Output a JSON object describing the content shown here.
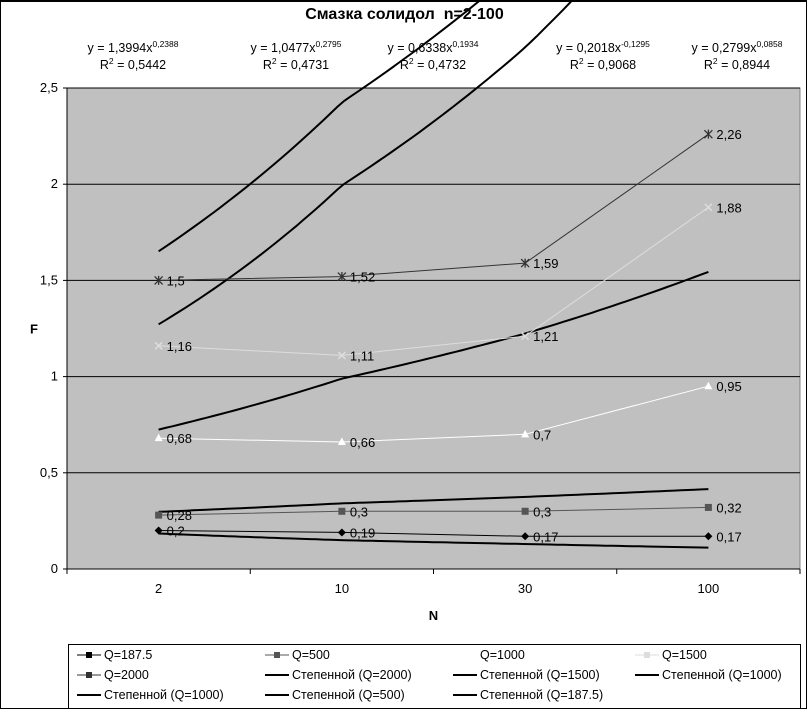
{
  "chart_data": {
    "type": "line",
    "title": "Смазка солидол  n=2-100",
    "xlabel": "N",
    "ylabel": "F",
    "x_categories": [
      "2",
      "10",
      "30",
      "100"
    ],
    "y_ticks": [
      "0",
      "0,5",
      "1",
      "1,5",
      "2",
      "2,5"
    ],
    "ylim": [
      0,
      2.5
    ],
    "grid": true,
    "plot_background": "#c0c0c0",
    "series": [
      {
        "name": "Q=187.5",
        "marker": "diamond",
        "color": "#000000",
        "values": [
          0.2,
          0.19,
          0.17,
          0.17
        ],
        "labels": [
          "0,2",
          "0,19",
          "0,17",
          "0,17"
        ]
      },
      {
        "name": "Q=500",
        "marker": "square",
        "color": "#555555",
        "values": [
          0.28,
          0.3,
          0.3,
          0.32
        ],
        "labels": [
          "0,28",
          "0,3",
          "0,3",
          "0,32"
        ]
      },
      {
        "name": "Q=1000",
        "marker": "triangle",
        "color": "#ffffff",
        "values": [
          0.68,
          0.66,
          0.7,
          0.95
        ],
        "labels": [
          "0,68",
          "0,66",
          "0,7",
          "0,95"
        ]
      },
      {
        "name": "Q=1500",
        "marker": "x",
        "color": "#dddddd",
        "values": [
          1.16,
          1.11,
          1.21,
          1.88
        ],
        "labels": [
          "1,16",
          "1,11",
          "1,21",
          "1,88"
        ]
      },
      {
        "name": "Q=2000",
        "marker": "star",
        "color": "#333333",
        "values": [
          1.5,
          1.52,
          1.59,
          2.26
        ],
        "labels": [
          "1,5",
          "1,52",
          "1,59",
          "2,26"
        ]
      }
    ],
    "trendlines": [
      {
        "name": "Степенной (Q=2000)",
        "a": 1.3994,
        "b": 0.2388
      },
      {
        "name": "Степенной (Q=1500)",
        "a": 1.0477,
        "b": 0.2795
      },
      {
        "name": "Степенной (Q=1000)",
        "a": 0.6338,
        "b": 0.1934
      },
      {
        "name": "Степенной (Q=500)",
        "a": 0.2799,
        "b": 0.0858
      },
      {
        "name": "Степенной (Q=187.5)",
        "a": 0.2018,
        "b": -0.1295
      }
    ],
    "equations": [
      {
        "coef": "y = 1,3994x",
        "exp": "0,2388",
        "r2_label": "R",
        "r2_exp": "2",
        "r2_value": " = 0,5442"
      },
      {
        "coef": "y = 1,0477x",
        "exp": "0,2795",
        "r2_label": "R",
        "r2_exp": "2",
        "r2_value": " = 0,4731"
      },
      {
        "coef": "y = 0,6338x",
        "exp": "0,1934",
        "r2_label": "R",
        "r2_exp": "2",
        "r2_value": " = 0,4732"
      },
      {
        "coef": "y = 0,2018x",
        "exp": "-0,1295",
        "r2_label": "R",
        "r2_exp": "2",
        "r2_value": " = 0,9068"
      },
      {
        "coef": "y = 0,2799x",
        "exp": "0,0858",
        "r2_label": "R",
        "r2_exp": "2",
        "r2_value": " = 0,8944"
      }
    ],
    "legend_position": "bottom",
    "legend_entries": [
      "Q=187.5",
      "Q=500",
      "Q=1000",
      "Q=1500",
      "Q=2000",
      "Степенной (Q=2000)",
      "Степенной (Q=1500)",
      "Степенной (Q=1000)",
      "Степенной (Q=1000)",
      "Степенной (Q=500)",
      "Степенной (Q=187.5)"
    ]
  }
}
